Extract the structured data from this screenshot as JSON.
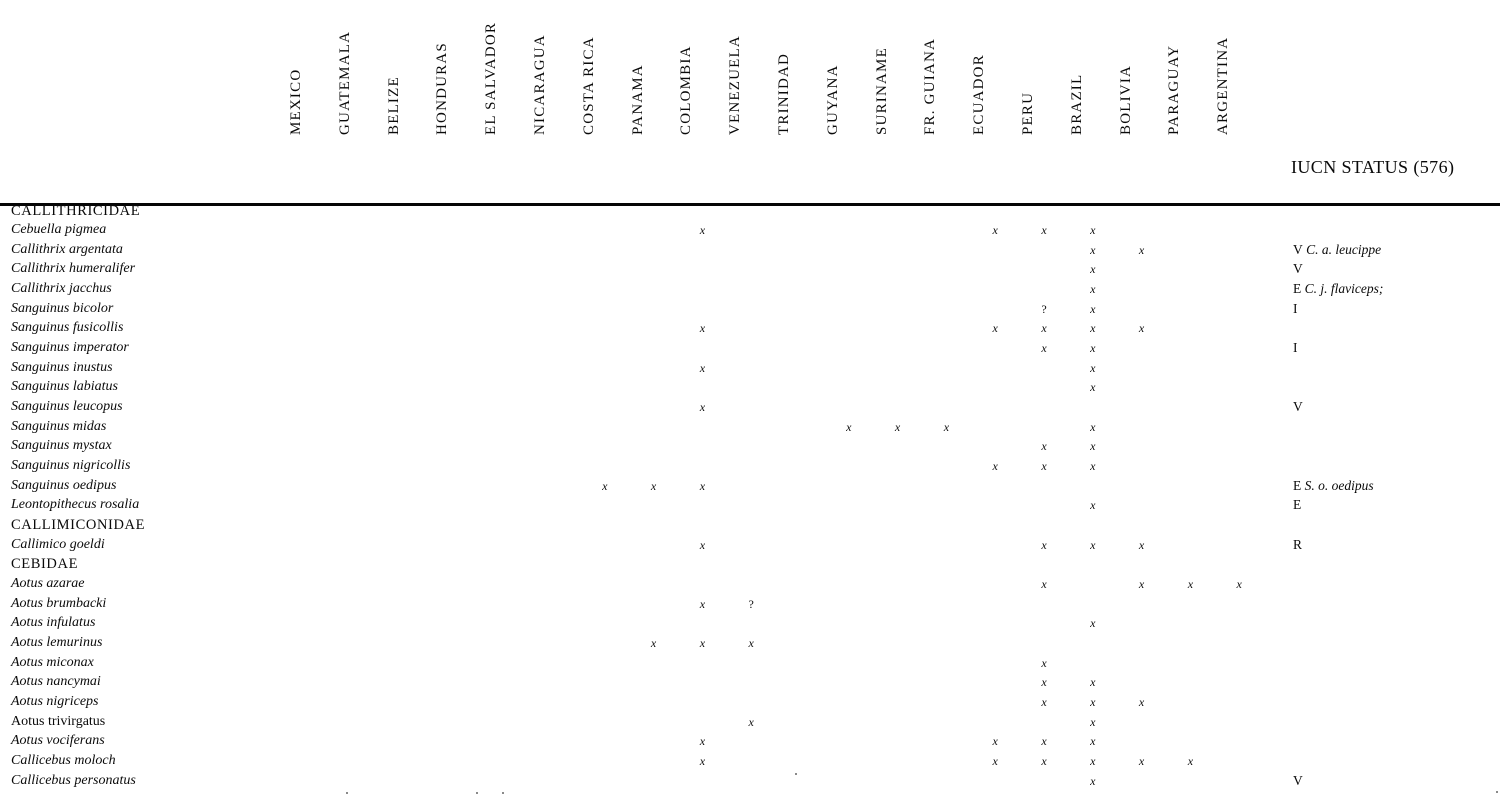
{
  "header": {
    "status_label": "IUCN STATUS (576)"
  },
  "countries": [
    "MEXICO",
    "GUATEMALA",
    "BELIZE",
    "HONDURAS",
    "EL SALVADOR",
    "NICARAGUA",
    "COSTA RICA",
    "PANAMA",
    "COLOMBIA",
    "VENEZUELA",
    "TRINIDAD",
    "GUYANA",
    "SURINAME",
    "FR. GUIANA",
    "ECUADOR",
    "PERU",
    "BRAZIL",
    "BOLIVIA",
    "PARAGUAY",
    "ARGENTINA"
  ],
  "mark_symbols": {
    "present": "x",
    "uncertain": "?"
  },
  "rows": [
    {
      "label": "CALLITHRICIDAE",
      "kind": "family",
      "marks": {},
      "status_code": "",
      "status_note": ""
    },
    {
      "label": "Cebuella pigmea",
      "kind": "species",
      "marks": {
        "COLOMBIA": "x",
        "ECUADOR": "x",
        "PERU": "x",
        "BRAZIL": "x"
      },
      "status_code": "",
      "status_note": ""
    },
    {
      "label": "Callithrix argentata",
      "kind": "species",
      "marks": {
        "BRAZIL": "x",
        "BOLIVIA": "x"
      },
      "status_code": "V",
      "status_note": "C. a. leucippe"
    },
    {
      "label": "Callithrix humeralifer",
      "kind": "species",
      "marks": {
        "BRAZIL": "x"
      },
      "status_code": "V",
      "status_note": ""
    },
    {
      "label": "Callithrix jacchus",
      "kind": "species",
      "marks": {
        "BRAZIL": "x"
      },
      "status_code": "E",
      "status_note": "C. j. flaviceps;"
    },
    {
      "label": "Sanguinus bicolor",
      "kind": "species",
      "marks": {
        "PERU": "?",
        "BRAZIL": "x"
      },
      "status_code": "I",
      "status_note": ""
    },
    {
      "label": "Sanguinus fusicollis",
      "kind": "species",
      "marks": {
        "COLOMBIA": "x",
        "ECUADOR": "x",
        "PERU": "x",
        "BRAZIL": "x",
        "BOLIVIA": "x"
      },
      "status_code": "",
      "status_note": ""
    },
    {
      "label": "Sanguinus imperator",
      "kind": "species",
      "marks": {
        "PERU": "x",
        "BRAZIL": "x"
      },
      "status_code": "I",
      "status_note": ""
    },
    {
      "label": "Sanguinus inustus",
      "kind": "species",
      "marks": {
        "COLOMBIA": "x",
        "BRAZIL": "x"
      },
      "status_code": "",
      "status_note": ""
    },
    {
      "label": "Sanguinus labiatus",
      "kind": "species",
      "marks": {
        "BRAZIL": "x"
      },
      "status_code": "",
      "status_note": ""
    },
    {
      "label": "Sanguinus leucopus",
      "kind": "species",
      "marks": {
        "COLOMBIA": "x"
      },
      "status_code": "V",
      "status_note": ""
    },
    {
      "label": "Sanguinus midas",
      "kind": "species",
      "marks": {
        "GUYANA": "x",
        "SURINAME": "x",
        "FR. GUIANA": "x",
        "BRAZIL": "x"
      },
      "status_code": "",
      "status_note": ""
    },
    {
      "label": "Sanguinus mystax",
      "kind": "species",
      "marks": {
        "PERU": "x",
        "BRAZIL": "x"
      },
      "status_code": "",
      "status_note": ""
    },
    {
      "label": "Sanguinus nigricollis",
      "kind": "species",
      "marks": {
        "ECUADOR": "x",
        "PERU": "x",
        "BRAZIL": "x"
      },
      "status_code": "",
      "status_note": ""
    },
    {
      "label": "Sanguinus oedipus",
      "kind": "species",
      "marks": {
        "COSTA RICA": "x",
        "PANAMA": "x",
        "COLOMBIA": "x"
      },
      "status_code": "E",
      "status_note": "S. o. oedipus"
    },
    {
      "label": "Leontopithecus rosalia",
      "kind": "species",
      "marks": {
        "BRAZIL": "x"
      },
      "status_code": "E",
      "status_note": ""
    },
    {
      "label": "CALLIMICONIDAE",
      "kind": "family",
      "marks": {},
      "status_code": "",
      "status_note": ""
    },
    {
      "label": "Callimico goeldi",
      "kind": "species",
      "marks": {
        "COLOMBIA": "x",
        "PERU": "x",
        "BRAZIL": "x",
        "BOLIVIA": "x"
      },
      "status_code": "R",
      "status_note": ""
    },
    {
      "label": "CEBIDAE",
      "kind": "family",
      "marks": {},
      "status_code": "",
      "status_note": ""
    },
    {
      "label": "Aotus azarae",
      "kind": "species",
      "marks": {
        "PERU": "x",
        "BOLIVIA": "x",
        "PARAGUAY": "x",
        "ARGENTINA": "x"
      },
      "status_code": "",
      "status_note": ""
    },
    {
      "label": "Aotus brumbacki",
      "kind": "species",
      "marks": {
        "COLOMBIA": "x",
        "VENEZUELA": "?"
      },
      "status_code": "",
      "status_note": ""
    },
    {
      "label": "Aotus infulatus",
      "kind": "species",
      "marks": {
        "BRAZIL": "x"
      },
      "status_code": "",
      "status_note": ""
    },
    {
      "label": "Aotus lemurinus",
      "kind": "species",
      "marks": {
        "PANAMA": "x",
        "COLOMBIA": "x",
        "VENEZUELA": "x"
      },
      "status_code": "",
      "status_note": ""
    },
    {
      "label": "Aotus miconax",
      "kind": "species",
      "marks": {
        "PERU": "x"
      },
      "status_code": "",
      "status_note": ""
    },
    {
      "label": "Aotus nancymai",
      "kind": "species",
      "marks": {
        "PERU": "x",
        "BRAZIL": "x"
      },
      "status_code": "",
      "status_note": ""
    },
    {
      "label": "Aotus nigriceps",
      "kind": "species",
      "marks": {
        "PERU": "x",
        "BRAZIL": "x",
        "BOLIVIA": "x"
      },
      "status_code": "",
      "status_note": ""
    },
    {
      "label": "Aotus trivirgatus",
      "kind": "species-upright",
      "marks": {
        "VENEZUELA": "x",
        "BRAZIL": "x"
      },
      "status_code": "",
      "status_note": ""
    },
    {
      "label": "Aotus vociferans",
      "kind": "species",
      "marks": {
        "COLOMBIA": "x",
        "ECUADOR": "x",
        "PERU": "x",
        "BRAZIL": "x"
      },
      "status_code": "",
      "status_note": ""
    },
    {
      "label": "Callicebus moloch",
      "kind": "species",
      "marks": {
        "COLOMBIA": "x",
        "ECUADOR": "x",
        "PERU": "x",
        "BRAZIL": "x",
        "BOLIVIA": "x",
        "PARAGUAY": "x"
      },
      "status_code": "",
      "status_note": ""
    },
    {
      "label": "Callicebus personatus",
      "kind": "species",
      "marks": {
        "BRAZIL": "x"
      },
      "status_code": "V",
      "status_note": ""
    }
  ]
}
